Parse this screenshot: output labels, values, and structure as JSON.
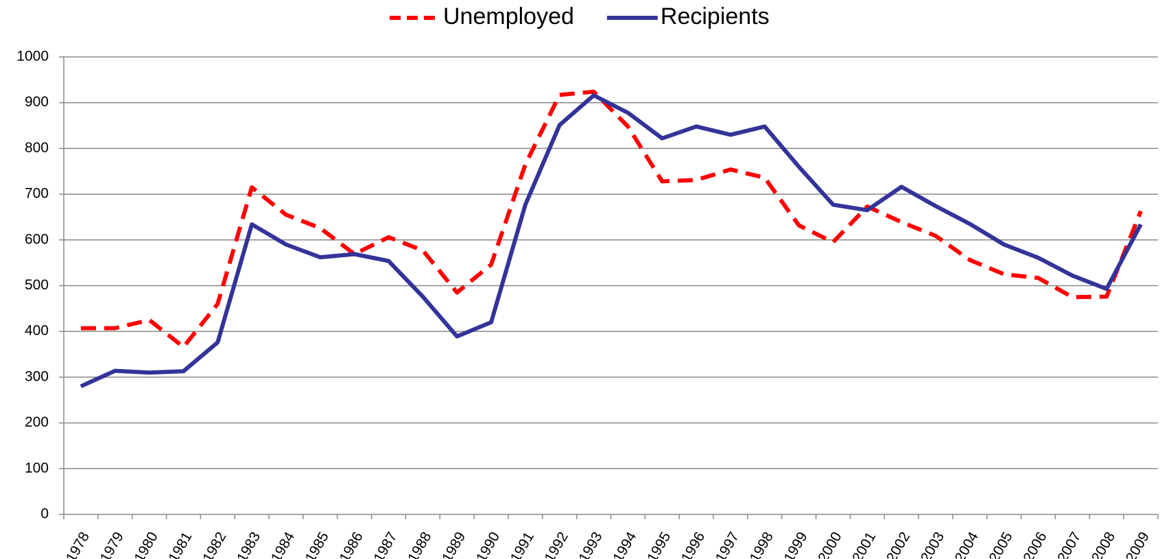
{
  "chart_data": {
    "type": "line",
    "categories": [
      "1978",
      "1979",
      "1980",
      "1981",
      "1982",
      "1983",
      "1984",
      "1985",
      "1986",
      "1987",
      "1988",
      "1989",
      "1990",
      "1991",
      "1992",
      "1993",
      "1994",
      "1995",
      "1996",
      "1997",
      "1998",
      "1999",
      "2000",
      "2001",
      "2002",
      "2003",
      "2004",
      "2005",
      "2006",
      "2007",
      "2008",
      "2009"
    ],
    "series": [
      {
        "name": "Unemployed",
        "color": "#ff0000",
        "dashed": true,
        "values": [
          407,
          407,
          425,
          366,
          460,
          715,
          655,
          626,
          569,
          606,
          577,
          485,
          546,
          765,
          917,
          924,
          848,
          728,
          731,
          754,
          736,
          632,
          595,
          673,
          639,
          609,
          556,
          525,
          517,
          475,
          476,
          663
        ]
      },
      {
        "name": "Recipients",
        "color": "#333399",
        "dashed": false,
        "values": [
          280,
          314,
          310,
          313,
          376,
          634,
          590,
          562,
          569,
          554,
          476,
          389,
          420,
          677,
          851,
          916,
          878,
          822,
          848,
          830,
          848,
          760,
          677,
          665,
          716,
          674,
          635,
          590,
          561,
          522,
          493,
          634
        ]
      }
    ],
    "ylim": [
      0,
      1000
    ],
    "yticks": [
      0,
      100,
      200,
      300,
      400,
      500,
      600,
      700,
      800,
      900,
      1000
    ],
    "grid": true,
    "legend": "top"
  }
}
